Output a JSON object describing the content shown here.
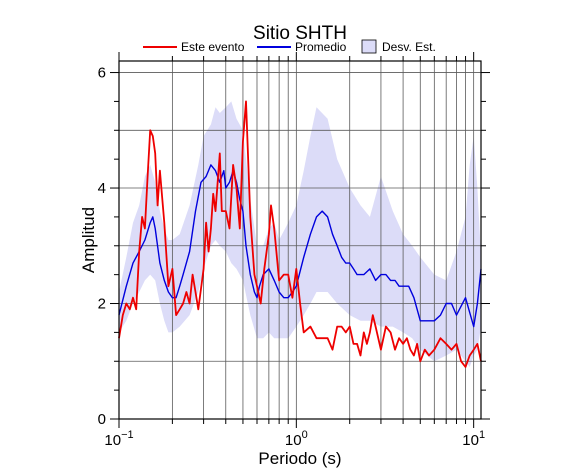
{
  "chart_data": {
    "type": "line",
    "title": "Sitio SHTH",
    "xlabel": "Periodo (s)",
    "ylabel": "Amplitud",
    "x_scale": "log",
    "xlim": [
      0.1,
      11
    ],
    "ylim": [
      0,
      6.2
    ],
    "grid": true,
    "legend_placement": "top",
    "x_tick_labels": [
      {
        "value": 0.1,
        "base": "10",
        "exp": "−1"
      },
      {
        "value": 1,
        "base": "10",
        "exp": "0"
      },
      {
        "value": 10,
        "base": "10",
        "exp": "1"
      }
    ],
    "y_ticks": [
      0,
      2,
      4,
      6
    ],
    "y_tick_labels": [
      "0",
      "2",
      "4",
      "6"
    ],
    "legend": [
      {
        "label": "Este evento",
        "kind": "line",
        "color": "#ee0000"
      },
      {
        "label": "Promedio",
        "kind": "line",
        "color": "#0000dd"
      },
      {
        "label": "Desv. Est.",
        "kind": "patch",
        "color": "#dcdcf8"
      }
    ],
    "series": [
      {
        "name": "Este evento",
        "color": "#ee0000",
        "x": [
          0.1,
          0.105,
          0.11,
          0.115,
          0.12,
          0.125,
          0.13,
          0.135,
          0.14,
          0.145,
          0.15,
          0.155,
          0.16,
          0.165,
          0.17,
          0.18,
          0.19,
          0.2,
          0.21,
          0.22,
          0.23,
          0.24,
          0.25,
          0.26,
          0.27,
          0.28,
          0.3,
          0.31,
          0.32,
          0.33,
          0.34,
          0.35,
          0.37,
          0.38,
          0.4,
          0.42,
          0.44,
          0.46,
          0.48,
          0.5,
          0.52,
          0.55,
          0.58,
          0.6,
          0.63,
          0.66,
          0.68,
          0.7,
          0.72,
          0.75,
          0.8,
          0.85,
          0.9,
          0.95,
          1.0,
          1.05,
          1.1,
          1.2,
          1.3,
          1.4,
          1.5,
          1.6,
          1.7,
          1.8,
          1.9,
          2.0,
          2.1,
          2.2,
          2.3,
          2.4,
          2.5,
          2.6,
          2.7,
          2.8,
          3.0,
          3.2,
          3.4,
          3.6,
          3.8,
          4.0,
          4.2,
          4.4,
          4.6,
          4.8,
          5.0,
          5.3,
          5.6,
          6.0,
          6.5,
          7.0,
          7.5,
          8.0,
          8.5,
          9.0,
          9.5,
          10.0,
          10.5,
          11.0
        ],
        "y": [
          1.4,
          1.8,
          2.0,
          1.9,
          2.1,
          1.9,
          2.9,
          3.5,
          3.3,
          4.2,
          5.0,
          4.9,
          4.6,
          3.7,
          4.3,
          3.4,
          2.3,
          2.6,
          1.8,
          1.9,
          2.0,
          2.2,
          2.0,
          2.5,
          2.2,
          1.9,
          2.6,
          3.4,
          2.9,
          3.3,
          3.9,
          3.6,
          4.6,
          3.6,
          3.6,
          3.3,
          4.4,
          4.0,
          3.3,
          4.8,
          5.5,
          3.5,
          2.5,
          2.3,
          2.0,
          2.6,
          2.9,
          3.2,
          3.7,
          3.3,
          2.4,
          2.5,
          2.5,
          2.1,
          2.6,
          2.0,
          1.5,
          1.6,
          1.4,
          1.4,
          1.4,
          1.2,
          1.6,
          1.6,
          1.5,
          1.6,
          1.3,
          1.3,
          1.1,
          1.5,
          1.3,
          1.5,
          1.8,
          1.6,
          1.2,
          1.6,
          1.5,
          1.2,
          1.4,
          1.3,
          1.4,
          1.2,
          1.1,
          1.3,
          1.0,
          1.2,
          1.1,
          1.2,
          1.4,
          1.3,
          1.2,
          1.3,
          1.0,
          0.9,
          1.1,
          1.2,
          1.3,
          1.0
        ]
      },
      {
        "name": "Promedio",
        "color": "#0000dd",
        "x": [
          0.1,
          0.11,
          0.12,
          0.13,
          0.14,
          0.15,
          0.155,
          0.16,
          0.17,
          0.18,
          0.19,
          0.2,
          0.21,
          0.22,
          0.23,
          0.25,
          0.27,
          0.29,
          0.31,
          0.33,
          0.35,
          0.37,
          0.39,
          0.4,
          0.42,
          0.44,
          0.46,
          0.48,
          0.5,
          0.52,
          0.55,
          0.58,
          0.6,
          0.62,
          0.65,
          0.7,
          0.75,
          0.8,
          0.85,
          0.9,
          0.95,
          1.0,
          1.1,
          1.2,
          1.3,
          1.4,
          1.5,
          1.6,
          1.7,
          1.8,
          1.9,
          2.0,
          2.1,
          2.2,
          2.4,
          2.6,
          2.8,
          3.0,
          3.2,
          3.4,
          3.6,
          3.8,
          4.0,
          4.3,
          4.6,
          5.0,
          5.5,
          6.0,
          6.5,
          7.0,
          7.5,
          8.0,
          9.0,
          10.0,
          10.5,
          11.0
        ],
        "y": [
          1.8,
          2.3,
          2.7,
          2.9,
          3.1,
          3.4,
          3.5,
          3.3,
          2.7,
          2.4,
          2.2,
          2.1,
          2.1,
          2.3,
          2.5,
          2.9,
          3.6,
          4.1,
          4.2,
          4.4,
          4.3,
          4.1,
          4.3,
          4.0,
          4.1,
          4.3,
          4.1,
          3.8,
          3.6,
          3.0,
          2.5,
          2.2,
          2.1,
          2.3,
          2.5,
          2.6,
          2.4,
          2.2,
          2.1,
          2.1,
          2.2,
          2.3,
          2.8,
          3.2,
          3.5,
          3.6,
          3.5,
          3.2,
          3.0,
          2.8,
          2.7,
          2.7,
          2.6,
          2.5,
          2.5,
          2.6,
          2.4,
          2.5,
          2.5,
          2.4,
          2.4,
          2.3,
          2.3,
          2.3,
          2.1,
          1.7,
          1.7,
          1.7,
          1.8,
          2.0,
          2.0,
          1.8,
          2.1,
          1.6,
          2.0,
          2.6
        ]
      }
    ],
    "std_band": {
      "name": "Desv. Est.",
      "color": "#dcdcf8",
      "x": [
        0.1,
        0.11,
        0.12,
        0.13,
        0.14,
        0.15,
        0.16,
        0.17,
        0.18,
        0.19,
        0.2,
        0.22,
        0.25,
        0.28,
        0.3,
        0.33,
        0.35,
        0.37,
        0.4,
        0.43,
        0.46,
        0.5,
        0.55,
        0.6,
        0.65,
        0.7,
        0.75,
        0.8,
        0.9,
        1.0,
        1.1,
        1.2,
        1.3,
        1.5,
        1.7,
        2.0,
        2.3,
        2.6,
        3.0,
        3.5,
        4.0,
        4.5,
        5.0,
        6.0,
        7.0,
        8.0,
        9.0,
        9.5,
        10.0,
        10.5,
        11.0
      ],
      "lower": [
        1.5,
        1.7,
        2.0,
        2.2,
        2.4,
        2.5,
        2.4,
        2.0,
        1.7,
        1.5,
        1.5,
        1.6,
        1.8,
        2.2,
        2.6,
        3.0,
        3.1,
        3.0,
        2.9,
        2.7,
        2.6,
        2.4,
        1.8,
        1.4,
        1.4,
        1.5,
        1.4,
        1.4,
        1.4,
        1.6,
        1.8,
        2.0,
        2.2,
        2.2,
        2.0,
        1.8,
        1.7,
        1.7,
        1.6,
        1.6,
        1.5,
        1.4,
        1.2,
        1.0,
        1.1,
        1.2,
        1.0,
        0.9,
        1.1,
        1.2,
        1.6
      ],
      "upper": [
        2.2,
        2.8,
        3.4,
        3.7,
        4.2,
        4.4,
        4.1,
        3.6,
        3.3,
        3.1,
        3.1,
        3.2,
        3.7,
        4.4,
        4.9,
        5.1,
        5.4,
        5.3,
        5.4,
        5.5,
        5.2,
        5.0,
        3.8,
        3.0,
        3.0,
        3.3,
        3.4,
        3.1,
        3.4,
        3.7,
        4.3,
        4.9,
        5.4,
        5.2,
        4.5,
        4.0,
        3.7,
        3.5,
        4.2,
        3.6,
        3.2,
        3.0,
        2.8,
        2.5,
        2.4,
        2.9,
        3.5,
        4.4,
        4.9,
        4.0,
        2.8
      ]
    }
  }
}
